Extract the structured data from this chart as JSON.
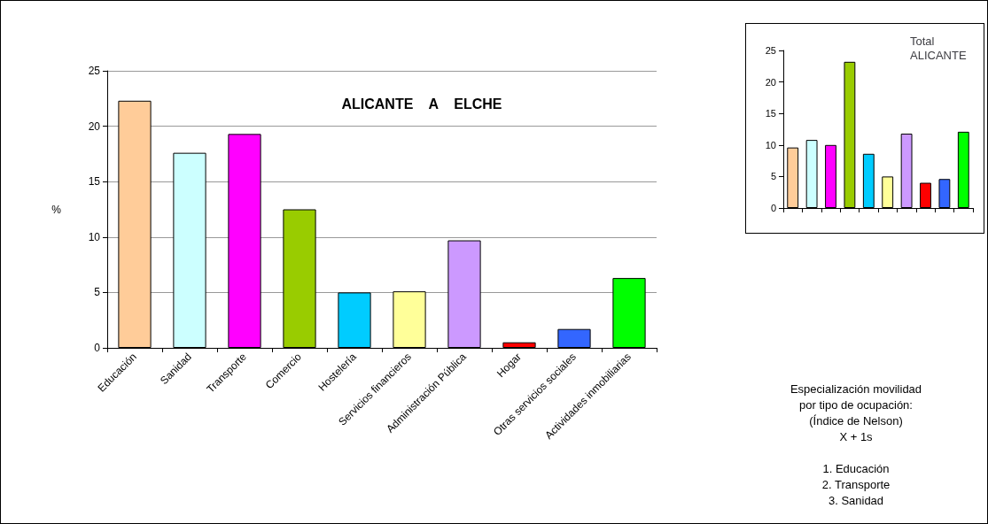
{
  "chart_data": [
    {
      "type": "bar",
      "title": "ALICANTE    A    ELCHE",
      "ylabel": "%",
      "categories": [
        "Educación",
        "Sanidad",
        "Transporte",
        "Comercio",
        "Hostelería",
        "Servicios financieros",
        "Administración Pública",
        "Hogar",
        "Otras servicios sociales",
        "Actividades inmobiliarias"
      ],
      "values": [
        22.3,
        17.6,
        19.3,
        12.5,
        5.0,
        5.1,
        9.7,
        0.5,
        1.7,
        6.3
      ],
      "colors": [
        "#ffcc99",
        "#ccffff",
        "#ff00ff",
        "#99cc00",
        "#00ccff",
        "#ffff99",
        "#cc99ff",
        "#ff0000",
        "#3366ff",
        "#00ff00"
      ],
      "ylim": [
        0,
        25
      ],
      "yticks": [
        0,
        5,
        10,
        15,
        20,
        25
      ],
      "grid": "y",
      "annotations": [
        "Especialización movilidad",
        "por tipo de ocupación:",
        "(Índice de Nelson)",
        "X + 1s",
        "1. Educación",
        "2. Transporte",
        "3. Sanidad"
      ]
    },
    {
      "type": "bar",
      "title": "Total ALICANTE",
      "categories": [
        null,
        null,
        null,
        null,
        null,
        null,
        null,
        null,
        null,
        null
      ],
      "values": [
        9.6,
        10.8,
        10.0,
        23.2,
        8.6,
        5.0,
        11.8,
        4.0,
        4.6,
        12.1
      ],
      "colors": [
        "#ffcc99",
        "#ccffff",
        "#ff00ff",
        "#99cc00",
        "#00ccff",
        "#ffff99",
        "#cc99ff",
        "#ff0000",
        "#3366ff",
        "#00ff00"
      ],
      "ylim": [
        0,
        25
      ],
      "yticks": [
        0,
        5,
        10,
        15,
        20,
        25
      ],
      "tick_labels": "y"
    }
  ]
}
